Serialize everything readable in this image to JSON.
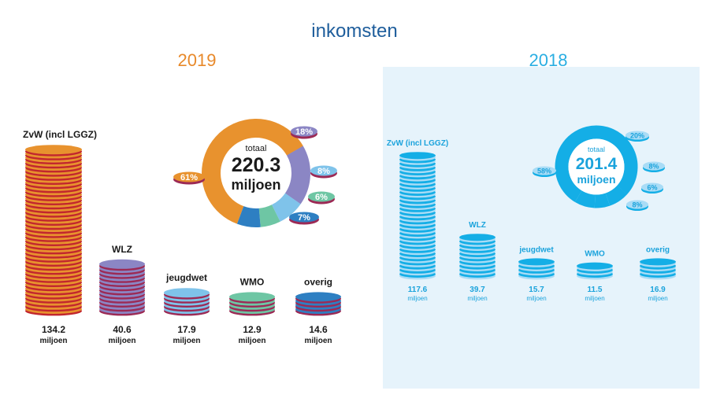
{
  "title": "inkomsten",
  "chart_data": [
    {
      "type": "bar",
      "year": "2019",
      "categories": [
        "ZvW (incl LGGZ)",
        "WLZ",
        "jeugdwet",
        "WMO",
        "overig"
      ],
      "values": [
        134.2,
        40.6,
        17.9,
        12.9,
        14.6
      ],
      "value_labels": [
        "134.2",
        "40.6",
        "17.9",
        "12.9",
        "14.6"
      ],
      "unit": "miljoen",
      "total_label": "totaal",
      "total_value": "220.3",
      "total_unit": "miljoen",
      "pie": {
        "type": "pie",
        "slices": [
          {
            "label": "61%",
            "value": 61,
            "color": "#e8922e"
          },
          {
            "label": "18%",
            "value": 18,
            "color": "#8b86c4"
          },
          {
            "label": "8%",
            "value": 8,
            "color": "#7fc3ea"
          },
          {
            "label": "6%",
            "value": 6,
            "color": "#6ec6a4"
          },
          {
            "label": "7%",
            "value": 7,
            "color": "#2e7fc2"
          }
        ]
      },
      "colors": {
        "ZvW (incl LGGZ)": {
          "face": "#e8922e",
          "band": "#c2262e"
        },
        "WLZ": {
          "face": "#8b86c4",
          "band": "#9c2a55"
        },
        "jeugdwet": {
          "face": "#7fc3ea",
          "band": "#9c2a55"
        },
        "WMO": {
          "face": "#6ec6a4",
          "band": "#9c2a55"
        },
        "overig": {
          "face": "#2e7fc2",
          "band": "#9c2a55"
        }
      }
    },
    {
      "type": "bar",
      "year": "2018",
      "categories": [
        "ZvW (incl LGGZ)",
        "WLZ",
        "jeugdwet",
        "WMO",
        "overig"
      ],
      "values": [
        117.6,
        39.7,
        15.7,
        11.5,
        16.9
      ],
      "value_labels": [
        "117.6",
        "39.7",
        "15.7",
        "11.5",
        "16.9"
      ],
      "unit": "miljoen",
      "total_label": "totaal",
      "total_value": "201.4",
      "total_unit": "miljoen",
      "pie": {
        "type": "pie",
        "slices": [
          {
            "label": "58%",
            "value": 58,
            "color": "#14aee6"
          },
          {
            "label": "20%",
            "value": 20,
            "color": "#14aee6"
          },
          {
            "label": "8%",
            "value": 8,
            "color": "#14aee6"
          },
          {
            "label": "6%",
            "value": 6,
            "color": "#14aee6"
          },
          {
            "label": "8%",
            "value": 8,
            "color": "#14aee6"
          }
        ]
      },
      "colors": {
        "face": "#a9dcf6",
        "band": "#14aee6",
        "text": "#1ba3dc"
      }
    }
  ]
}
